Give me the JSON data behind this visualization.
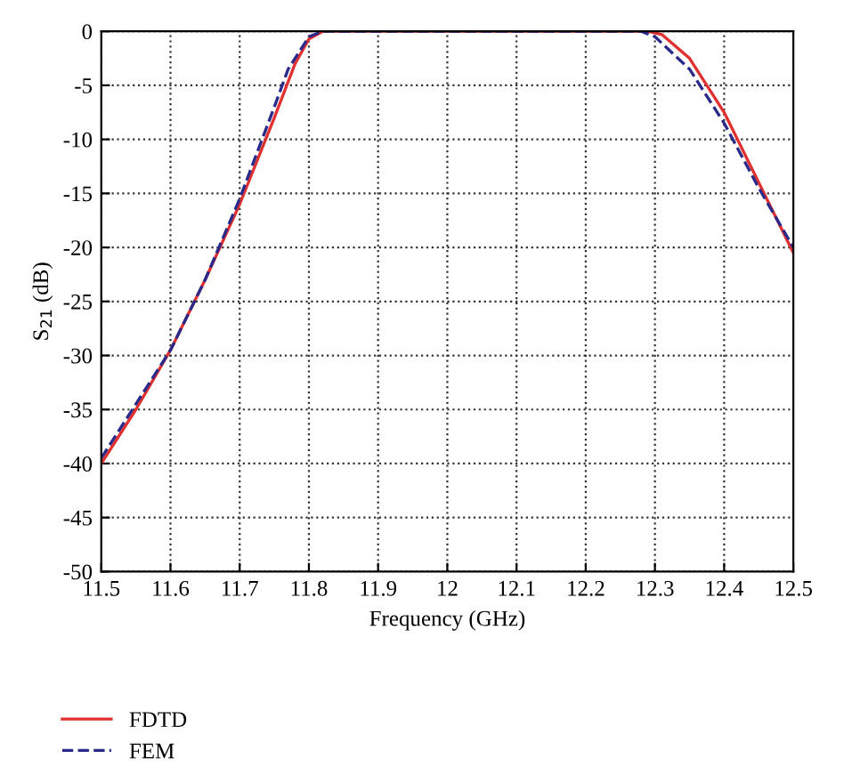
{
  "chart_data": {
    "type": "line",
    "xlabel": "Frequency (GHz)",
    "ylabel": "S$_{21}$ (dB)",
    "xlim": [
      11.5,
      12.5
    ],
    "ylim": [
      -50,
      0
    ],
    "xticks": [
      11.5,
      11.6,
      11.7,
      11.8,
      11.9,
      12,
      12.1,
      12.2,
      12.3,
      12.4,
      12.5
    ],
    "yticks": [
      0,
      -5,
      -10,
      -15,
      -20,
      -25,
      -30,
      -35,
      -40,
      -45,
      -50
    ],
    "grid": true,
    "legend": "bottom left",
    "series": [
      {
        "name": "FDTD",
        "color": "#e03030",
        "line_style": "solid",
        "x": [
          11.5,
          11.55,
          11.6,
          11.65,
          11.7,
          11.75,
          11.78,
          11.8,
          11.82,
          12.0,
          12.2,
          12.29,
          12.31,
          12.35,
          12.4,
          12.45,
          12.5
        ],
        "values": [
          -40,
          -35,
          -29.5,
          -23,
          -16,
          -8,
          -3,
          -0.7,
          0,
          0,
          0,
          0,
          -0.3,
          -2.5,
          -7.5,
          -14,
          -20.5
        ]
      },
      {
        "name": "FEM",
        "color": "#2a2a8a",
        "line_style": "dashed",
        "x": [
          11.5,
          11.55,
          11.6,
          11.65,
          11.7,
          11.75,
          11.77,
          11.8,
          11.82,
          12.0,
          12.2,
          12.28,
          12.3,
          12.35,
          12.4,
          12.45,
          12.5
        ],
        "values": [
          -39.5,
          -34.5,
          -29.5,
          -23,
          -15.5,
          -7,
          -3.5,
          -0.5,
          0,
          0,
          0,
          0,
          -0.5,
          -3.5,
          -8.5,
          -14.5,
          -20
        ]
      }
    ]
  }
}
